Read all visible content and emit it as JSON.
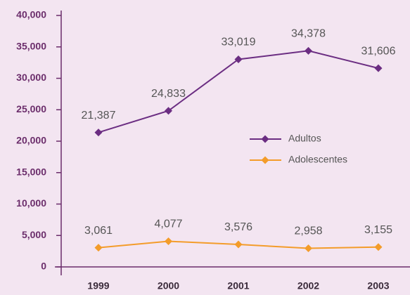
{
  "chart_data": {
    "type": "line",
    "categories": [
      "1999",
      "2000",
      "2001",
      "2002",
      "2003"
    ],
    "series": [
      {
        "name": "Adultos",
        "color": "#6b2d82",
        "values": [
          21387,
          24833,
          33019,
          34378,
          31606
        ],
        "value_labels": [
          "21,387",
          "24,833",
          "33,019",
          "34,378",
          "31,606"
        ]
      },
      {
        "name": "Adolescentes",
        "color": "#f39c2a",
        "values": [
          3061,
          4077,
          3576,
          2958,
          3155
        ],
        "value_labels": [
          "3,061",
          "4,077",
          "3,576",
          "2,958",
          "3,155"
        ]
      }
    ],
    "ylim": [
      0,
      40000
    ],
    "yticks": [
      0,
      {
        "value": 5000,
        "label": "5,000"
      },
      {
        "value": 10000,
        "label": "10,000"
      },
      {
        "value": 15000,
        "label": "15,000"
      },
      {
        "value": 20000,
        "label": "20,000"
      },
      {
        "value": 25000,
        "label": "25,000"
      },
      {
        "value": 30000,
        "label": "30,000"
      },
      {
        "value": 35000,
        "label": "35,000"
      },
      {
        "value": 40000,
        "label": "40,000"
      }
    ],
    "legend": "right"
  }
}
